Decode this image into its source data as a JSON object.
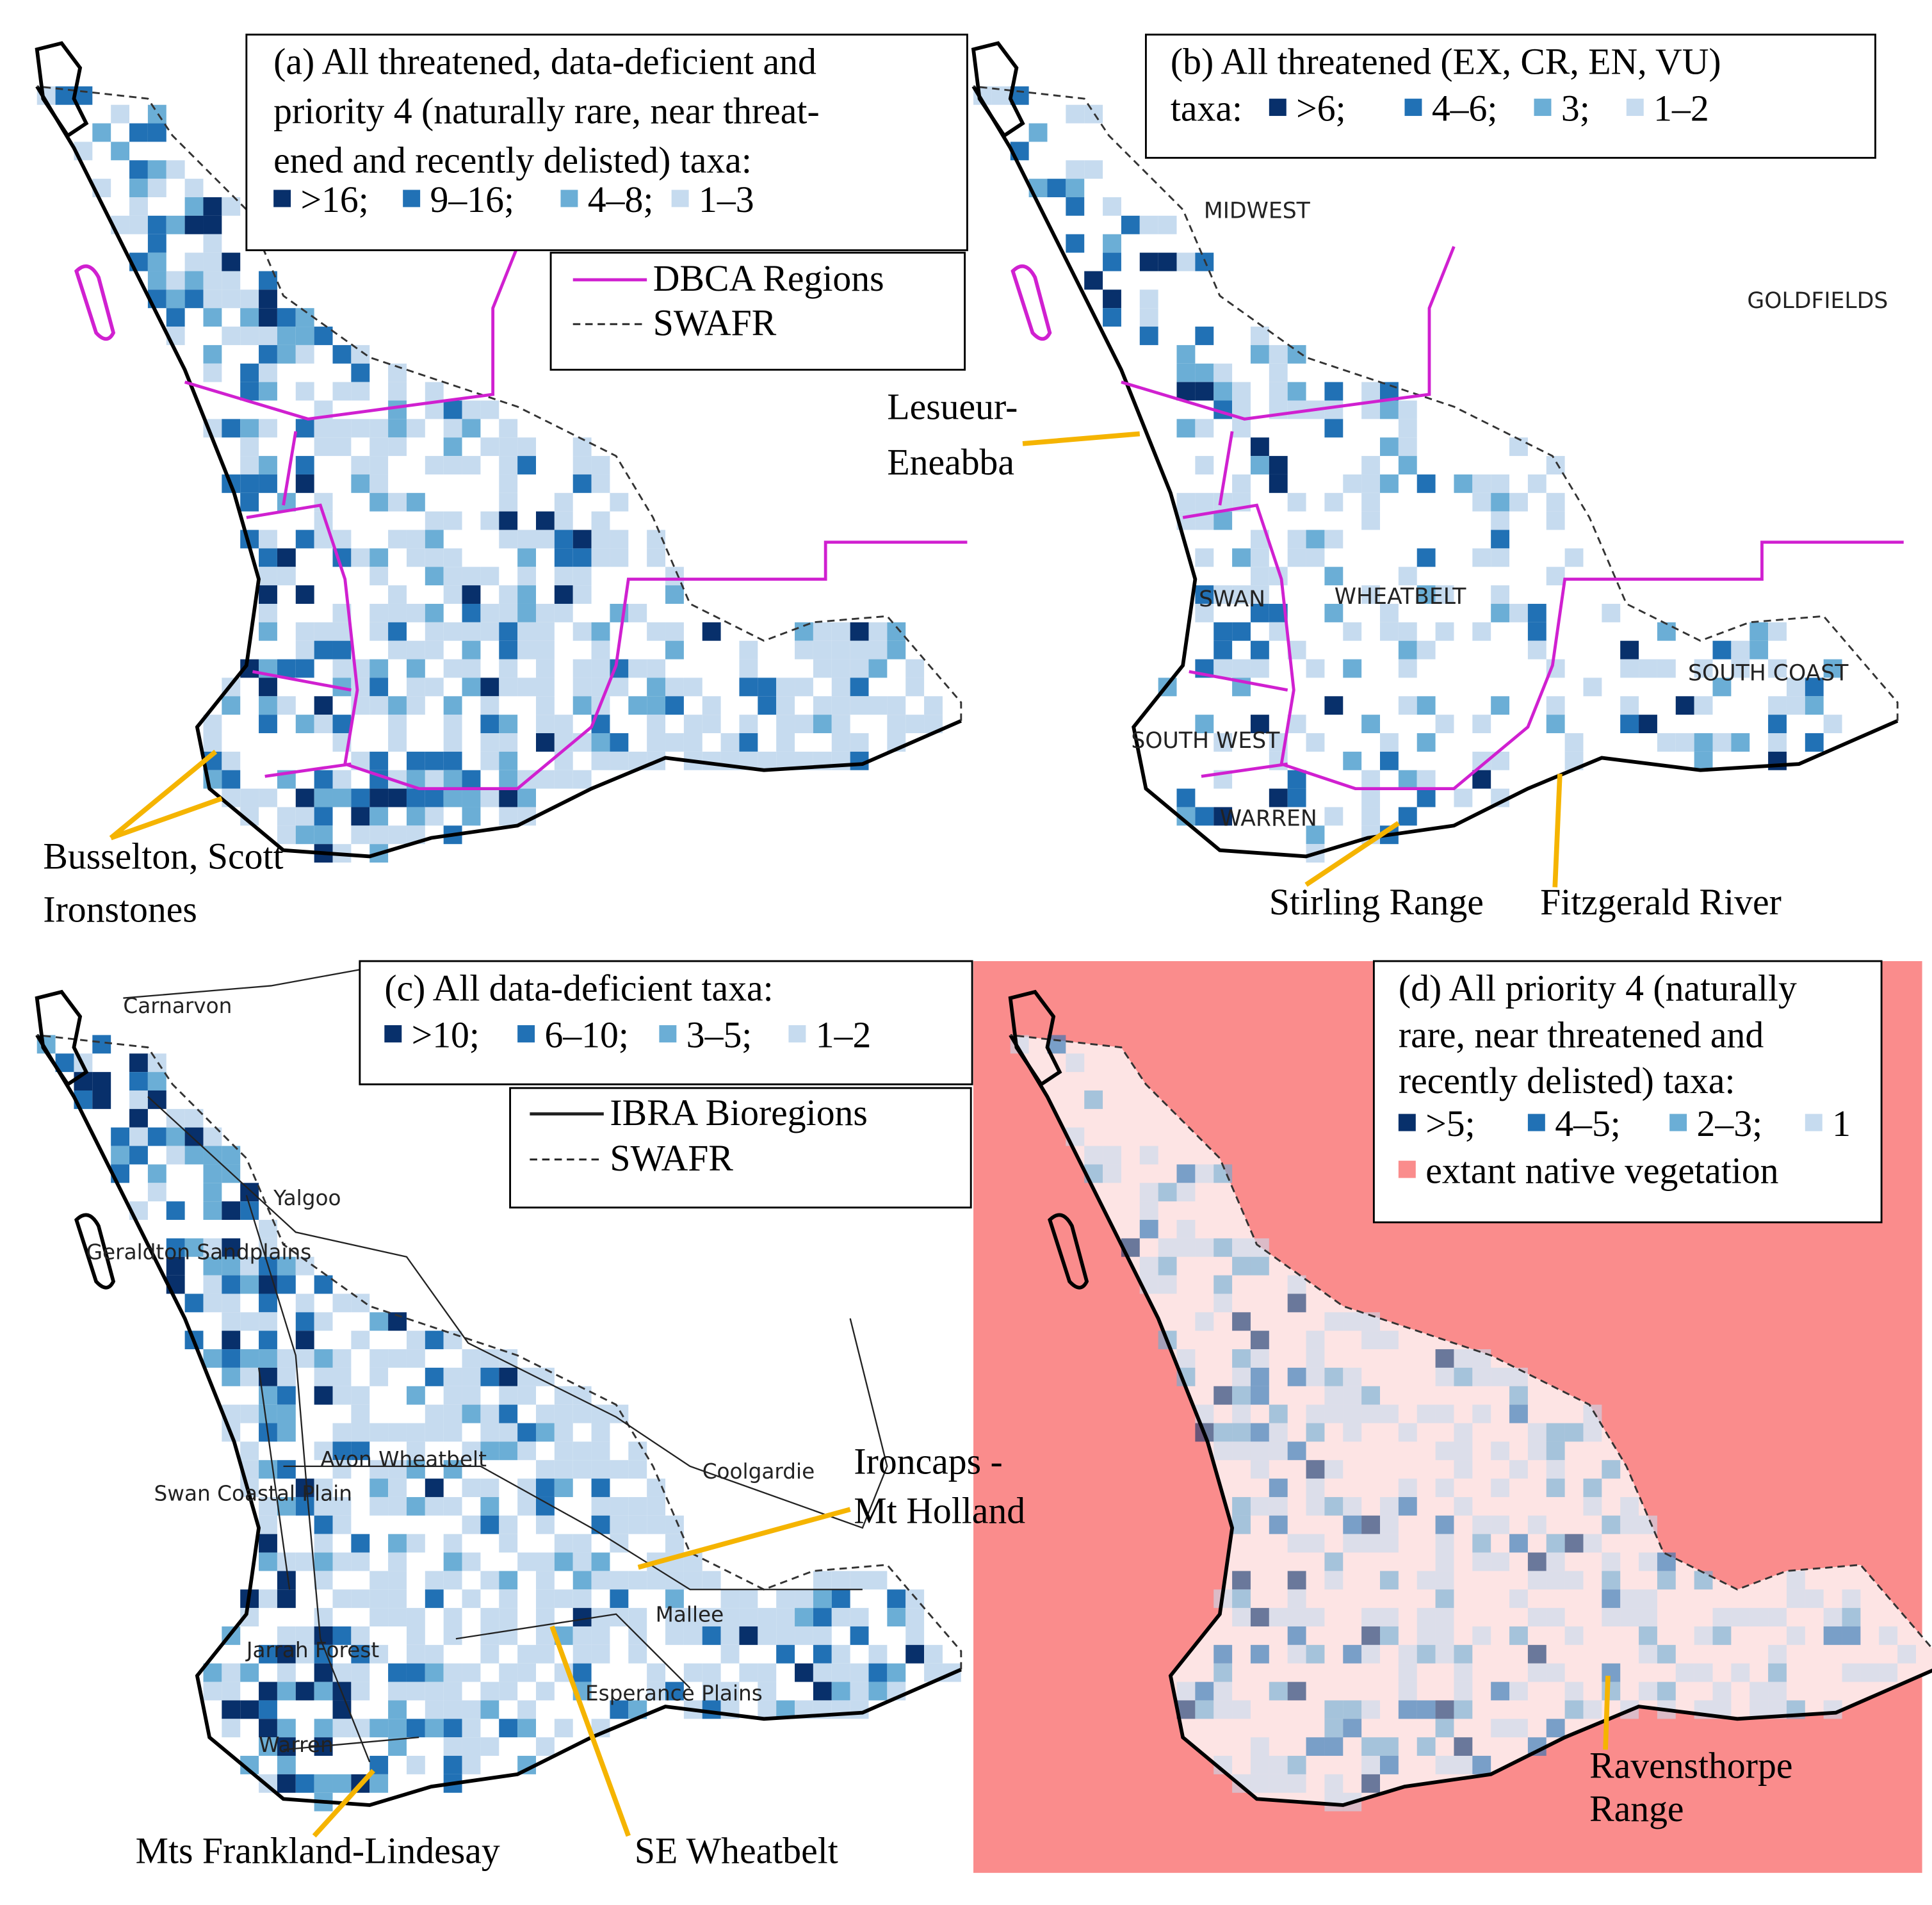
{
  "panels": [
    {
      "title_lines": [
        "(a) All threatened, data-deficient and",
        "priority 4 (naturally rare, near threat-",
        "ened and recently delisted) taxa:"
      ],
      "legend_items": [
        ">16;",
        "9–16;",
        "4–8;",
        "1–3"
      ],
      "boundary_legend": [
        "DBCA Regions",
        "SWAFR"
      ],
      "annotations": [
        [
          "Busselton, Scott",
          "Ironstones"
        ]
      ]
    },
    {
      "title_lines": [
        "(b) All threatened (EX, CR, EN, VU)",
        "taxa:"
      ],
      "legend_items": [
        ">6;",
        "4–6;",
        "3;",
        "1–2"
      ],
      "region_labels": [
        "MIDWEST",
        "GOLDFIELDS",
        "WHEATBELT",
        "SWAN",
        "SOUTH WEST",
        "WARREN",
        "SOUTH COAST"
      ],
      "annotations": [
        [
          "Lesueur-",
          "Eneabba"
        ],
        [
          "Stirling Range"
        ],
        [
          "Fitzgerald River"
        ]
      ]
    },
    {
      "title_lines": [
        "(c) All data-deficient taxa:"
      ],
      "legend_items": [
        ">10;",
        "6–10;",
        "3–5;",
        "1–2"
      ],
      "boundary_legend": [
        "IBRA Bioregions",
        "SWAFR"
      ],
      "region_labels": [
        "Carnarvon",
        "Yalgoo",
        "Geraldton Sandplains",
        "Avon Wheatbelt",
        "Swan Coastal Plain",
        "Coolgardie",
        "Mallee",
        "Jarrah Forest",
        "Esperance Plains",
        "Warren"
      ],
      "annotations": [
        [
          "Ironcaps -",
          "Mt Holland"
        ],
        [
          "Mts Frankland-Lindesay"
        ],
        [
          "SE Wheatbelt"
        ]
      ]
    },
    {
      "title_lines": [
        "(d) All priority 4 (naturally",
        "rare, near threatened and",
        "recently delisted) taxa:"
      ],
      "legend_items": [
        ">5;",
        "4–5;",
        "2–3;",
        "1"
      ],
      "vegetation_legend": "extant native vegetation",
      "annotations": [
        [
          "Ravensthorpe",
          "Range"
        ]
      ]
    }
  ]
}
